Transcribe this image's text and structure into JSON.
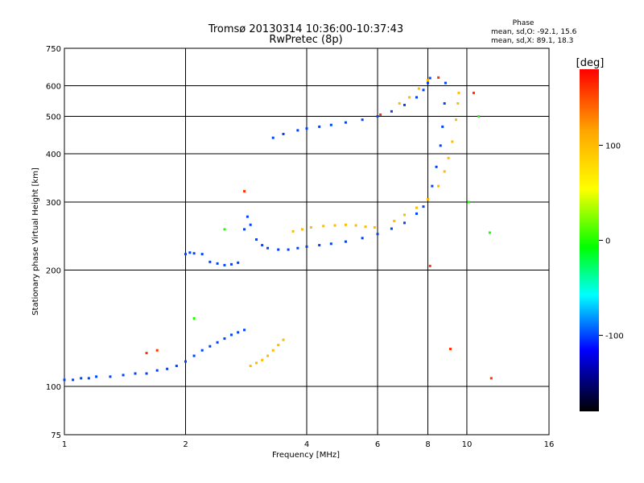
{
  "chart_data": {
    "type": "scatter",
    "title": "Tromsø 20130314 10:36:00-10:37:43",
    "subtitle": "RwPretec (8p)",
    "xlabel": "Frequency [MHz]",
    "ylabel": "Stationary phase Virtual Height [km]",
    "x_scale": "log",
    "y_scale": "log",
    "xlim": [
      1,
      16
    ],
    "ylim": [
      75,
      750
    ],
    "x_ticks": [
      1,
      2,
      4,
      6,
      8,
      10,
      16
    ],
    "y_ticks": [
      75,
      100,
      200,
      300,
      400,
      500,
      600,
      750
    ],
    "grid": true,
    "phase_box": {
      "title": "Phase",
      "line_o": "mean, sd,O:  -92.1, 15.6",
      "line_x": "mean, sd,X:  89.1, 18.3"
    },
    "colorbar": {
      "label": "[deg]",
      "range": [
        -180,
        180
      ],
      "ticks": [
        100,
        0,
        -100
      ],
      "colors": [
        "#ff0000",
        "#ffa500",
        "#ffff00",
        "#00ff00",
        "#00ffff",
        "#0000ff",
        "#000000"
      ]
    },
    "series": [
      {
        "mode": "O",
        "phase": -100,
        "points": [
          [
            1.0,
            104
          ],
          [
            1.05,
            104
          ],
          [
            1.1,
            105
          ],
          [
            1.15,
            105
          ],
          [
            1.2,
            106
          ],
          [
            1.3,
            106
          ],
          [
            1.4,
            107
          ],
          [
            1.5,
            108
          ],
          [
            1.6,
            108
          ],
          [
            1.7,
            110
          ],
          [
            1.8,
            111
          ],
          [
            1.9,
            113
          ],
          [
            2.0,
            116
          ],
          [
            2.1,
            120
          ],
          [
            2.2,
            124
          ],
          [
            2.3,
            127
          ],
          [
            2.4,
            130
          ],
          [
            2.5,
            133
          ],
          [
            2.6,
            136
          ],
          [
            2.7,
            138
          ],
          [
            2.8,
            140
          ],
          [
            2.0,
            220
          ],
          [
            2.05,
            222
          ],
          [
            2.1,
            221
          ],
          [
            2.2,
            220
          ],
          [
            2.3,
            210
          ],
          [
            2.4,
            208
          ],
          [
            2.5,
            206
          ],
          [
            2.6,
            207
          ],
          [
            2.7,
            209
          ],
          [
            2.8,
            255
          ],
          [
            2.85,
            275
          ],
          [
            2.9,
            262
          ],
          [
            3.0,
            240
          ],
          [
            3.1,
            232
          ],
          [
            3.2,
            228
          ],
          [
            3.4,
            226
          ],
          [
            3.6,
            226
          ],
          [
            3.8,
            228
          ],
          [
            4.0,
            230
          ],
          [
            4.3,
            232
          ],
          [
            4.6,
            234
          ],
          [
            5.0,
            237
          ],
          [
            5.5,
            242
          ],
          [
            6.0,
            248
          ],
          [
            6.5,
            256
          ],
          [
            7.0,
            265
          ],
          [
            7.5,
            280
          ],
          [
            7.8,
            292
          ],
          [
            8.0,
            305
          ],
          [
            8.2,
            330
          ],
          [
            8.4,
            370
          ],
          [
            8.6,
            420
          ],
          [
            8.7,
            470
          ],
          [
            8.8,
            540
          ],
          [
            8.85,
            610
          ],
          [
            3.3,
            440
          ],
          [
            3.5,
            450
          ],
          [
            3.8,
            460
          ],
          [
            4.0,
            465
          ],
          [
            4.3,
            470
          ],
          [
            4.6,
            475
          ],
          [
            5.0,
            482
          ],
          [
            5.5,
            490
          ],
          [
            6.0,
            500
          ],
          [
            6.5,
            515
          ],
          [
            7.0,
            535
          ],
          [
            7.5,
            560
          ],
          [
            7.8,
            585
          ],
          [
            8.0,
            610
          ],
          [
            8.1,
            628
          ]
        ]
      },
      {
        "mode": "X",
        "phase": 100,
        "points": [
          [
            2.9,
            113
          ],
          [
            3.0,
            115
          ],
          [
            3.1,
            117
          ],
          [
            3.2,
            120
          ],
          [
            3.3,
            124
          ],
          [
            3.4,
            128
          ],
          [
            3.5,
            132
          ],
          [
            3.7,
            252
          ],
          [
            3.9,
            255
          ],
          [
            4.1,
            258
          ],
          [
            4.4,
            260
          ],
          [
            4.7,
            261
          ],
          [
            5.0,
            262
          ],
          [
            5.3,
            261
          ],
          [
            5.6,
            259
          ],
          [
            5.9,
            258
          ],
          [
            6.6,
            268
          ],
          [
            7.0,
            278
          ],
          [
            7.5,
            290
          ],
          [
            8.0,
            305
          ],
          [
            8.5,
            330
          ],
          [
            8.8,
            360
          ],
          [
            9.0,
            390
          ],
          [
            9.2,
            430
          ],
          [
            9.4,
            490
          ],
          [
            9.5,
            540
          ],
          [
            9.55,
            575
          ],
          [
            6.8,
            540
          ],
          [
            7.2,
            560
          ],
          [
            7.6,
            590
          ],
          [
            8.0,
            620
          ]
        ]
      },
      {
        "mode": "scattered",
        "phase": 160,
        "points": [
          [
            1.6,
            122
          ],
          [
            1.7,
            124
          ],
          [
            2.8,
            320
          ],
          [
            8.5,
            630
          ],
          [
            6.1,
            505
          ],
          [
            10.4,
            575
          ],
          [
            11.5,
            105
          ],
          [
            8.1,
            205
          ],
          [
            9.1,
            125
          ]
        ]
      },
      {
        "mode": "scattered",
        "phase": 0,
        "points": [
          [
            10.7,
            500
          ],
          [
            10.1,
            300
          ],
          [
            11.4,
            250
          ],
          [
            2.5,
            255
          ],
          [
            2.1,
            150
          ]
        ]
      }
    ]
  }
}
